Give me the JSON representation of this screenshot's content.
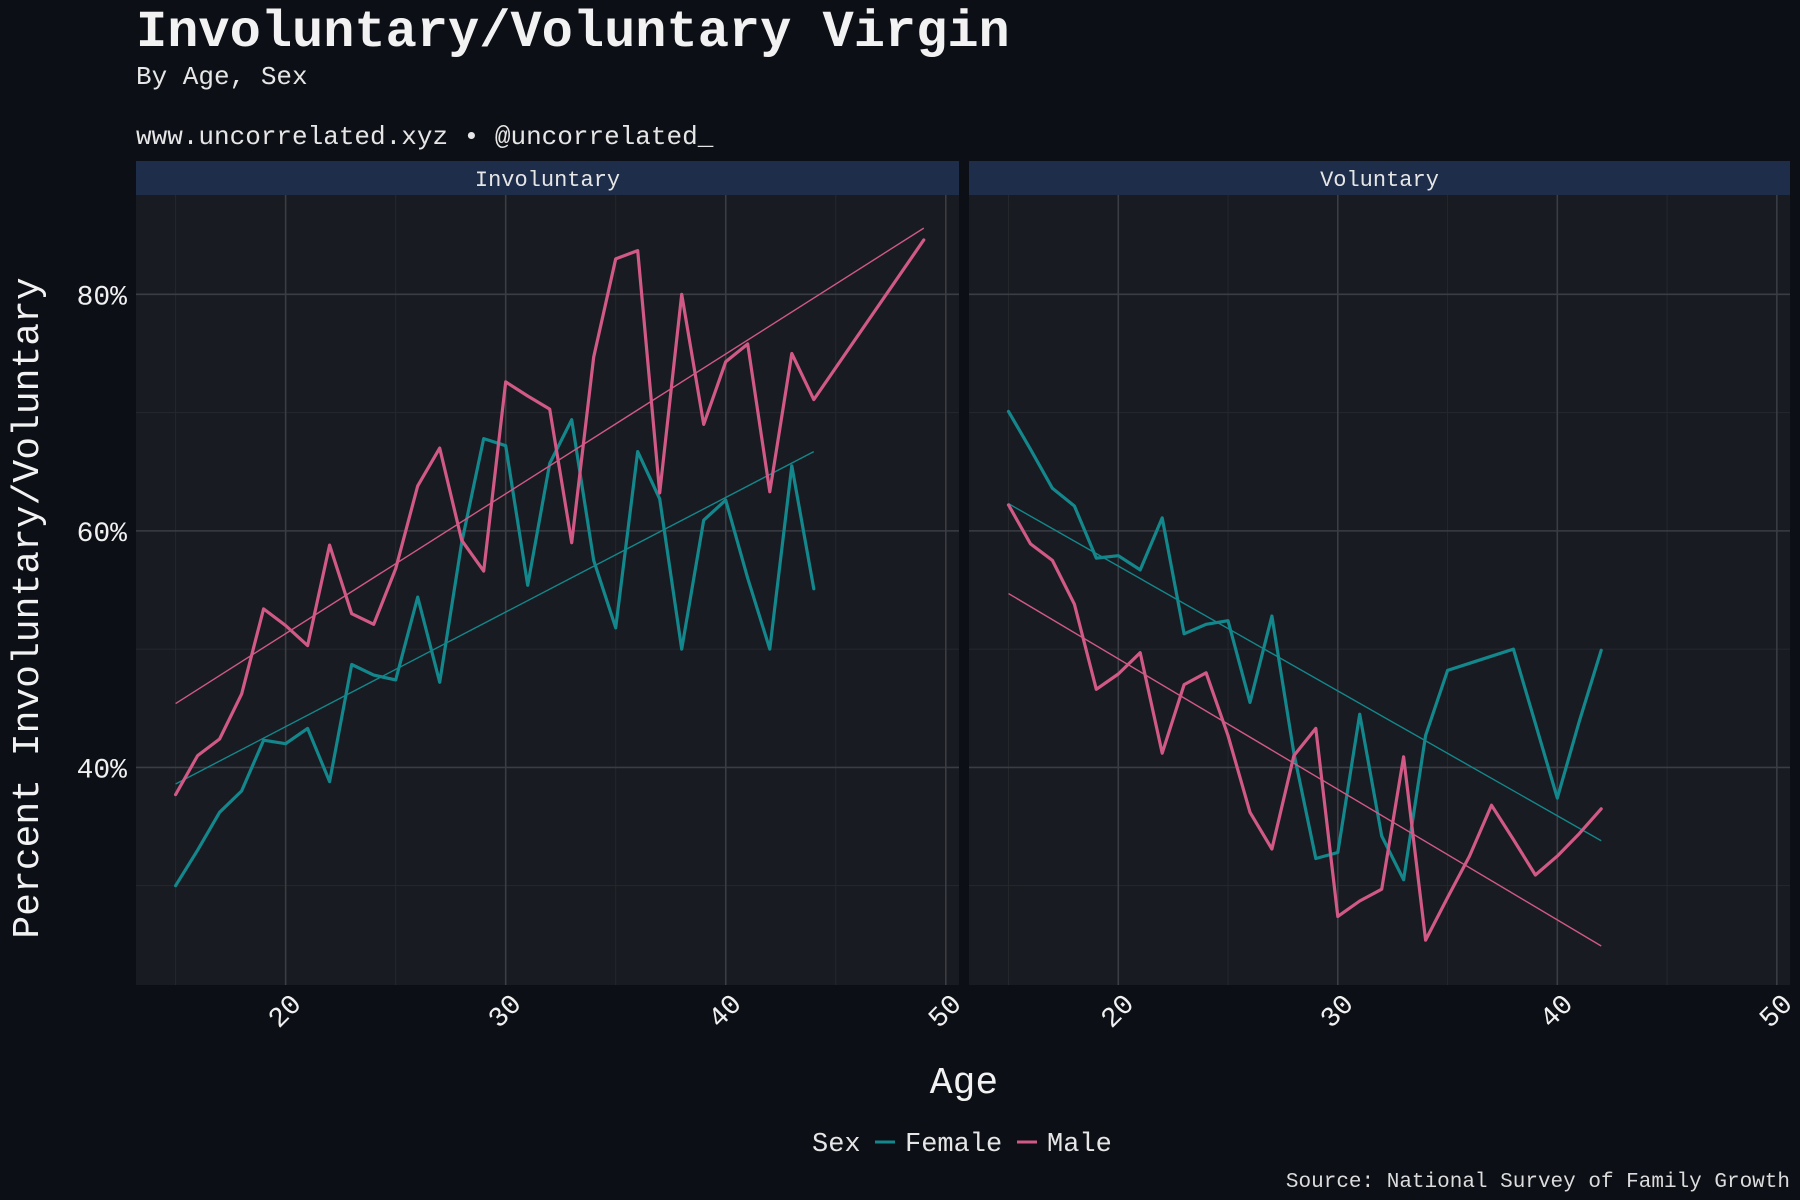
{
  "header": {
    "title": "Involuntary/Voluntary Virgin",
    "subtitle": "By Age, Sex",
    "byline": "www.uncorrelated.xyz • @uncorrelated_"
  },
  "caption": "Source: National Survey of Family Growth",
  "colors": {
    "background": "#0c0f15",
    "panel": "#181b21",
    "strip": "#1e2d4a",
    "grid_major": "#3a3d44",
    "grid_minor": "#25282e",
    "female": "#13878b",
    "male": "#d05986"
  },
  "legend": {
    "title": "Sex",
    "entries": [
      {
        "label": "Female",
        "color": "#13878b"
      },
      {
        "label": "Male",
        "color": "#d05986"
      }
    ]
  },
  "chart_data": {
    "type": "line",
    "xlabel": "Age",
    "ylabel": "Percent Involuntary/Voluntary",
    "x_ticks": [
      20,
      30,
      40,
      50
    ],
    "y_ticks": [
      0.4,
      0.6,
      0.8
    ],
    "y_tick_labels": [
      "40%",
      "60%",
      "80%"
    ],
    "xlim": [
      13.2,
      50.6
    ],
    "ylim": [
      0.216,
      0.884
    ],
    "grid": true,
    "legend_position": "bottom",
    "panels": [
      {
        "name": "Involuntary",
        "series": [
          {
            "name": "Female",
            "x": [
              15,
              16,
              17,
              18,
              19,
              20,
              21,
              22,
              23,
              24,
              25,
              26,
              27,
              28,
              29,
              30,
              31,
              32,
              33,
              34,
              35,
              36,
              37,
              38,
              39,
              40,
              41,
              42,
              43,
              44
            ],
            "y": [
              0.3,
              0.33,
              0.362,
              0.38,
              0.423,
              0.42,
              0.433,
              0.388,
              0.487,
              0.478,
              0.474,
              0.544,
              0.472,
              0.59,
              0.678,
              0.672,
              0.554,
              0.657,
              0.694,
              0.575,
              0.518,
              0.667,
              0.627,
              0.5,
              0.609,
              0.626,
              0.56,
              0.5,
              0.655,
              0.551
            ],
            "trend": {
              "x": [
                15,
                44
              ],
              "y": [
                0.386,
                0.667
              ]
            }
          },
          {
            "name": "Male",
            "x": [
              15,
              16,
              17,
              18,
              19,
              20,
              21,
              22,
              23,
              24,
              25,
              26,
              27,
              28,
              29,
              30,
              31,
              32,
              33,
              34,
              35,
              36,
              37,
              38,
              39,
              40,
              41,
              42,
              43,
              44,
              49
            ],
            "y": [
              0.377,
              0.41,
              0.424,
              0.462,
              0.534,
              0.52,
              0.503,
              0.588,
              0.53,
              0.521,
              0.568,
              0.638,
              0.67,
              0.592,
              0.566,
              0.726,
              0.714,
              0.703,
              0.59,
              0.747,
              0.83,
              0.837,
              0.632,
              0.8,
              0.69,
              0.743,
              0.758,
              0.633,
              0.75,
              0.711,
              0.846
            ],
            "trend": {
              "x": [
                15,
                49
              ],
              "y": [
                0.454,
                0.856
              ]
            }
          }
        ]
      },
      {
        "name": "Voluntary",
        "series": [
          {
            "name": "Female",
            "x": [
              15,
              16,
              17,
              18,
              19,
              20,
              21,
              22,
              23,
              24,
              25,
              26,
              27,
              28,
              29,
              30,
              31,
              32,
              33,
              34,
              35,
              36,
              37,
              38,
              39,
              40,
              41,
              42
            ],
            "y": [
              0.701,
              0.669,
              0.636,
              0.621,
              0.577,
              0.579,
              0.567,
              0.611,
              0.513,
              0.521,
              0.524,
              0.455,
              0.528,
              0.412,
              0.323,
              0.328,
              0.445,
              0.342,
              0.305,
              0.427,
              0.482,
              0.488,
              0.494,
              0.5,
              0.437,
              0.374,
              0.439,
              0.499
            ],
            "trend": {
              "x": [
                15,
                42
              ],
              "y": [
                0.623,
                0.338
              ]
            }
          },
          {
            "name": "Male",
            "x": [
              15,
              16,
              17,
              18,
              19,
              20,
              21,
              22,
              23,
              24,
              25,
              26,
              27,
              28,
              29,
              30,
              31,
              32,
              33,
              34,
              35,
              36,
              37,
              38,
              39,
              40,
              41,
              42
            ],
            "y": [
              0.622,
              0.589,
              0.575,
              0.538,
              0.466,
              0.479,
              0.497,
              0.412,
              0.47,
              0.48,
              0.427,
              0.362,
              0.331,
              0.41,
              0.433,
              0.274,
              0.287,
              0.297,
              0.409,
              0.254,
              0.29,
              0.325,
              0.368,
              0.339,
              0.309,
              0.325,
              0.344,
              0.365
            ],
            "trend": {
              "x": [
                15,
                42
              ],
              "y": [
                0.547,
                0.249
              ]
            }
          }
        ]
      }
    ]
  }
}
